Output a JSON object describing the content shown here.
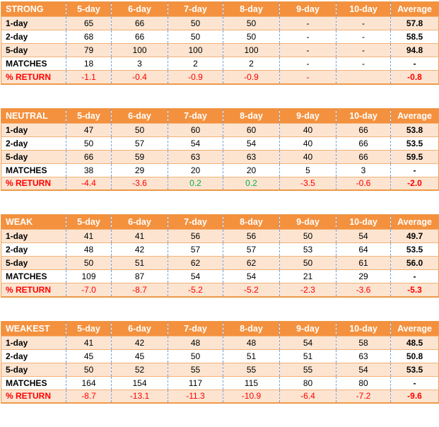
{
  "colors": {
    "header_bg": "#f4913e",
    "band_bg": "#fce4d0",
    "row_white": "#ffffff",
    "header_text": "#ffffff",
    "horizontal_border": "#f2b279",
    "outer_border": "#ee9a49",
    "vertical_dashed_border": "#7d9ed3",
    "negative_text": "#ff0000",
    "positive_text": "#00b050",
    "label_text": "#000000"
  },
  "chart_data": [
    {
      "type": "table",
      "title": "STRONG",
      "columns": [
        "5-day",
        "6-day",
        "7-day",
        "8-day",
        "9-day",
        "10-day",
        "Average"
      ],
      "rows": [
        {
          "label": "1-day",
          "kind": "data",
          "values": [
            "65",
            "66",
            "50",
            "50",
            "-",
            "-",
            "57.8"
          ]
        },
        {
          "label": "2-day",
          "kind": "data",
          "values": [
            "68",
            "66",
            "50",
            "50",
            "-",
            "-",
            "58.5"
          ]
        },
        {
          "label": "5-day",
          "kind": "data",
          "values": [
            "79",
            "100",
            "100",
            "100",
            "-",
            "-",
            "94.8"
          ]
        },
        {
          "label": "MATCHES",
          "kind": "data",
          "values": [
            "18",
            "3",
            "2",
            "2",
            "-",
            "-",
            "-"
          ]
        },
        {
          "label": "% RETURN",
          "kind": "return",
          "values": [
            "-1.1",
            "-0.4",
            "-0.9",
            "-0.9",
            "-",
            "",
            "-0.8"
          ]
        }
      ]
    },
    {
      "type": "table",
      "title": "NEUTRAL",
      "columns": [
        "5-day",
        "6-day",
        "7-day",
        "8-day",
        "9-day",
        "10-day",
        "Average"
      ],
      "rows": [
        {
          "label": "1-day",
          "kind": "data",
          "values": [
            "47",
            "50",
            "60",
            "60",
            "40",
            "66",
            "53.8"
          ]
        },
        {
          "label": "2-day",
          "kind": "data",
          "values": [
            "50",
            "57",
            "54",
            "54",
            "40",
            "66",
            "53.5"
          ]
        },
        {
          "label": "5-day",
          "kind": "data",
          "values": [
            "66",
            "59",
            "63",
            "63",
            "40",
            "66",
            "59.5"
          ]
        },
        {
          "label": "MATCHES",
          "kind": "data",
          "values": [
            "38",
            "29",
            "20",
            "20",
            "5",
            "3",
            "-"
          ]
        },
        {
          "label": "% RETURN",
          "kind": "return",
          "values": [
            "-4.4",
            "-3.6",
            "0.2",
            "0.2",
            "-3.5",
            "-0.6",
            "-2.0"
          ]
        }
      ]
    },
    {
      "type": "table",
      "title": "WEAK",
      "columns": [
        "5-day",
        "6-day",
        "7-day",
        "8-day",
        "9-day",
        "10-day",
        "Average"
      ],
      "rows": [
        {
          "label": "1-day",
          "kind": "data",
          "values": [
            "41",
            "41",
            "56",
            "56",
            "50",
            "54",
            "49.7"
          ]
        },
        {
          "label": "2-day",
          "kind": "data",
          "values": [
            "48",
            "42",
            "57",
            "57",
            "53",
            "64",
            "53.5"
          ]
        },
        {
          "label": "5-day",
          "kind": "data",
          "values": [
            "50",
            "51",
            "62",
            "62",
            "50",
            "61",
            "56.0"
          ]
        },
        {
          "label": "MATCHES",
          "kind": "data",
          "values": [
            "109",
            "87",
            "54",
            "54",
            "21",
            "29",
            "-"
          ]
        },
        {
          "label": "% RETURN",
          "kind": "return",
          "values": [
            "-7.0",
            "-8.7",
            "-5.2",
            "-5.2",
            "-2.3",
            "-3.6",
            "-5.3"
          ]
        }
      ]
    },
    {
      "type": "table",
      "title": "WEAKEST",
      "columns": [
        "5-day",
        "6-day",
        "7-day",
        "8-day",
        "9-day",
        "10-day",
        "Average"
      ],
      "rows": [
        {
          "label": "1-day",
          "kind": "data",
          "values": [
            "41",
            "42",
            "48",
            "48",
            "54",
            "58",
            "48.5"
          ]
        },
        {
          "label": "2-day",
          "kind": "data",
          "values": [
            "45",
            "45",
            "50",
            "51",
            "51",
            "63",
            "50.8"
          ]
        },
        {
          "label": "5-day",
          "kind": "data",
          "values": [
            "50",
            "52",
            "55",
            "55",
            "55",
            "54",
            "53.5"
          ]
        },
        {
          "label": "MATCHES",
          "kind": "data",
          "values": [
            "164",
            "154",
            "117",
            "115",
            "80",
            "80",
            "-"
          ]
        },
        {
          "label": "% RETURN",
          "kind": "return",
          "values": [
            "-8.7",
            "-13.1",
            "-11.3",
            "-10.9",
            "-6.4",
            "-7.2",
            "-9.6"
          ]
        }
      ]
    }
  ]
}
